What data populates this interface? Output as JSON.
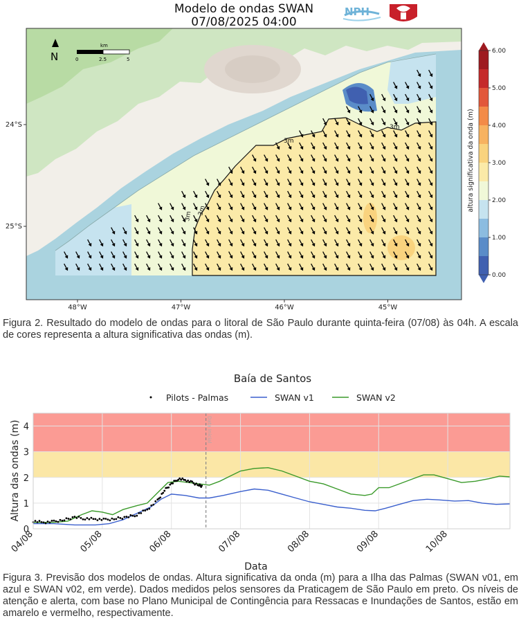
{
  "figure2": {
    "title_line1": "Modelo de ondas SWAN",
    "title_line2": "07/08/2025 04:00",
    "logos": [
      "NPH",
      "university-crest"
    ],
    "north_label": "N",
    "scalebar": {
      "unit": "km",
      "ticks": [
        "0",
        "2.5",
        "5"
      ]
    },
    "lon_ticks": [
      {
        "value": -48,
        "label": "48°W"
      },
      {
        "value": -47,
        "label": "47°W"
      },
      {
        "value": -46,
        "label": "46°W"
      },
      {
        "value": -45,
        "label": "45°W"
      }
    ],
    "lat_ticks": [
      {
        "value": -24,
        "label": "24°S"
      },
      {
        "value": -25,
        "label": "25°S"
      }
    ],
    "contour_label": "3m",
    "colorbar": {
      "label": "altura significativa da onda (m)",
      "ticks": [
        "0.00",
        "1.00",
        "2.00",
        "3.00",
        "4.00",
        "5.00",
        "6.00"
      ],
      "colors": [
        "#4060b0",
        "#5a8cc8",
        "#8cbce0",
        "#c6e3ef",
        "#f0f8d8",
        "#fbeaa8",
        "#f9d37e",
        "#f7b260",
        "#f38b48",
        "#e2573a",
        "#c52a2a",
        "#9e1a20"
      ]
    },
    "caption": "Figura 2. Resultado do modelo de ondas para o litoral de São Paulo durante quinta-feira (07/08) às 04h. A escala de cores representa a altura significativa das ondas (m)."
  },
  "figure3": {
    "caption": "Figura 3. Previsão dos modelos de ondas. Altura significativa da onda (m) para a Ilha das Palmas (SWAN v01, em azul e SWAN v02, em verde). Dados medidos pelos sensores da Praticagem de São Paulo em preto. Os níveis de atenção e alerta, com base no Plano Municipal de Contingência para Ressacas e Inundações de Santos, estão em amarelo e vermelho, respectivamente."
  },
  "chart_data": {
    "type": "line",
    "title": "Baía de Santos",
    "xlabel": "Data",
    "ylabel": "Altura das ondas (m)",
    "ylim": [
      0,
      4.5
    ],
    "xlim": [
      0,
      6.9
    ],
    "x_ticks": [
      {
        "x": 0,
        "label": "04/08"
      },
      {
        "x": 1,
        "label": "05/08"
      },
      {
        "x": 2,
        "label": "06/08"
      },
      {
        "x": 3,
        "label": "07/08"
      },
      {
        "x": 4,
        "label": "08/08"
      },
      {
        "x": 5,
        "label": "09/08"
      },
      {
        "x": 6,
        "label": "10/08"
      }
    ],
    "y_ticks": [
      0,
      1,
      2,
      3,
      4
    ],
    "legend": [
      "Pilots - Palmas",
      "SWAN v1",
      "SWAN v2"
    ],
    "legend_position": "top",
    "now_marker": {
      "x": 2.5,
      "label": "Data Inicial"
    },
    "bands": [
      {
        "from": 2,
        "to": 3,
        "color": "#fbe7a6",
        "meaning": "atenção"
      },
      {
        "from": 3,
        "to": 4.5,
        "color": "#fb9b94",
        "meaning": "alerta"
      }
    ],
    "series": [
      {
        "name": "SWAN v1",
        "color": "#3a5fcd",
        "points": [
          [
            0,
            0.2
          ],
          [
            0.3,
            0.2
          ],
          [
            0.6,
            0.15
          ],
          [
            0.9,
            0.15
          ],
          [
            1.1,
            0.2
          ],
          [
            1.3,
            0.35
          ],
          [
            1.5,
            0.6
          ],
          [
            1.7,
            0.85
          ],
          [
            1.85,
            1.15
          ],
          [
            2.0,
            1.35
          ],
          [
            2.2,
            1.3
          ],
          [
            2.4,
            1.2
          ],
          [
            2.55,
            1.2
          ],
          [
            2.75,
            1.3
          ],
          [
            3.0,
            1.45
          ],
          [
            3.2,
            1.55
          ],
          [
            3.4,
            1.5
          ],
          [
            3.6,
            1.35
          ],
          [
            3.8,
            1.2
          ],
          [
            4.0,
            1.05
          ],
          [
            4.2,
            0.95
          ],
          [
            4.4,
            0.85
          ],
          [
            4.6,
            0.8
          ],
          [
            4.8,
            0.72
          ],
          [
            4.95,
            0.7
          ],
          [
            5.1,
            0.8
          ],
          [
            5.3,
            0.95
          ],
          [
            5.5,
            1.1
          ],
          [
            5.7,
            1.15
          ],
          [
            5.9,
            1.12
          ],
          [
            6.1,
            1.08
          ],
          [
            6.3,
            1.1
          ],
          [
            6.5,
            1.0
          ],
          [
            6.7,
            0.95
          ],
          [
            6.9,
            0.97
          ]
        ]
      },
      {
        "name": "SWAN v2",
        "color": "#3a9a2a",
        "points": [
          [
            0,
            0.25
          ],
          [
            0.3,
            0.25
          ],
          [
            0.5,
            0.3
          ],
          [
            0.7,
            0.55
          ],
          [
            0.85,
            0.7
          ],
          [
            1.0,
            0.65
          ],
          [
            1.15,
            0.55
          ],
          [
            1.3,
            0.75
          ],
          [
            1.5,
            0.9
          ],
          [
            1.65,
            1.0
          ],
          [
            1.8,
            1.4
          ],
          [
            1.95,
            1.8
          ],
          [
            2.1,
            1.85
          ],
          [
            2.25,
            1.8
          ],
          [
            2.4,
            1.75
          ],
          [
            2.55,
            1.7
          ],
          [
            2.7,
            1.85
          ],
          [
            2.85,
            2.05
          ],
          [
            3.0,
            2.25
          ],
          [
            3.2,
            2.35
          ],
          [
            3.4,
            2.38
          ],
          [
            3.6,
            2.25
          ],
          [
            3.8,
            2.05
          ],
          [
            4.0,
            1.85
          ],
          [
            4.2,
            1.75
          ],
          [
            4.4,
            1.55
          ],
          [
            4.6,
            1.35
          ],
          [
            4.8,
            1.3
          ],
          [
            4.9,
            1.35
          ],
          [
            5.0,
            1.6
          ],
          [
            5.15,
            1.6
          ],
          [
            5.3,
            1.75
          ],
          [
            5.5,
            1.95
          ],
          [
            5.65,
            2.1
          ],
          [
            5.8,
            2.1
          ],
          [
            6.0,
            1.95
          ],
          [
            6.2,
            1.8
          ],
          [
            6.4,
            1.85
          ],
          [
            6.6,
            1.95
          ],
          [
            6.75,
            2.05
          ],
          [
            6.9,
            2.02
          ]
        ]
      },
      {
        "name": "Pilots - Palmas",
        "color": "#000000",
        "style": "dots",
        "points": [
          [
            0,
            0.3
          ],
          [
            0.15,
            0.25
          ],
          [
            0.3,
            0.28
          ],
          [
            0.45,
            0.35
          ],
          [
            0.6,
            0.45
          ],
          [
            0.75,
            0.4
          ],
          [
            0.9,
            0.38
          ],
          [
            1.05,
            0.35
          ],
          [
            1.2,
            0.4
          ],
          [
            1.35,
            0.45
          ],
          [
            1.5,
            0.55
          ],
          [
            1.65,
            0.75
          ],
          [
            1.8,
            1.1
          ],
          [
            1.9,
            1.5
          ],
          [
            2.0,
            1.75
          ],
          [
            2.1,
            1.95
          ],
          [
            2.2,
            1.9
          ],
          [
            2.3,
            1.8
          ],
          [
            2.4,
            1.7
          ],
          [
            2.45,
            1.65
          ]
        ]
      }
    ]
  }
}
